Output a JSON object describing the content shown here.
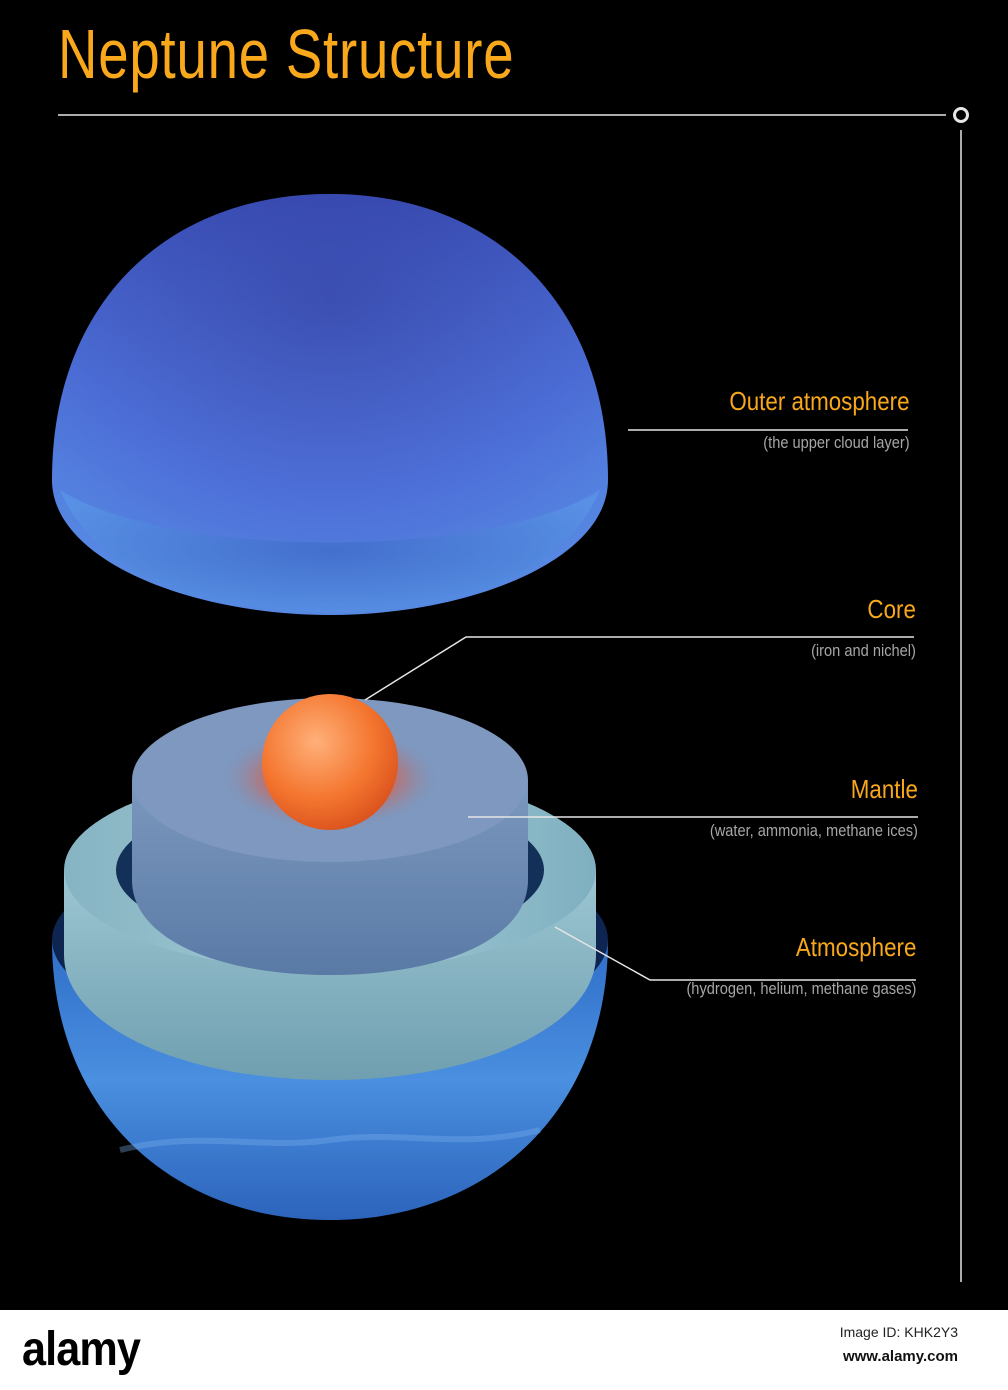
{
  "title": "Neptune Structure",
  "colors": {
    "title": "#f9a81b",
    "label": "#f9a81b",
    "description": "#a6a6a6",
    "lines": "#e6e6e6",
    "outer_blue": "#4a6fd6",
    "atmosphere_blue": "#3f86d8",
    "ice_teal": "#8fb8c4",
    "mantle_blue": "#6f8fb4",
    "core_orange": "#f27a3c"
  },
  "layers": [
    {
      "name": "Outer atmosphere",
      "description": "(the upper cloud layer)"
    },
    {
      "name": "Core",
      "description": "(iron and nichel)"
    },
    {
      "name": "Mantle",
      "description": "(water, ammonia, methane ices)"
    },
    {
      "name": "Atmosphere",
      "description": "(hydrogen, helium, methane gases)"
    }
  ],
  "watermark": {
    "brand": "alamy",
    "image_id": "Image ID: KHK2Y3",
    "url": "www.alamy.com"
  }
}
